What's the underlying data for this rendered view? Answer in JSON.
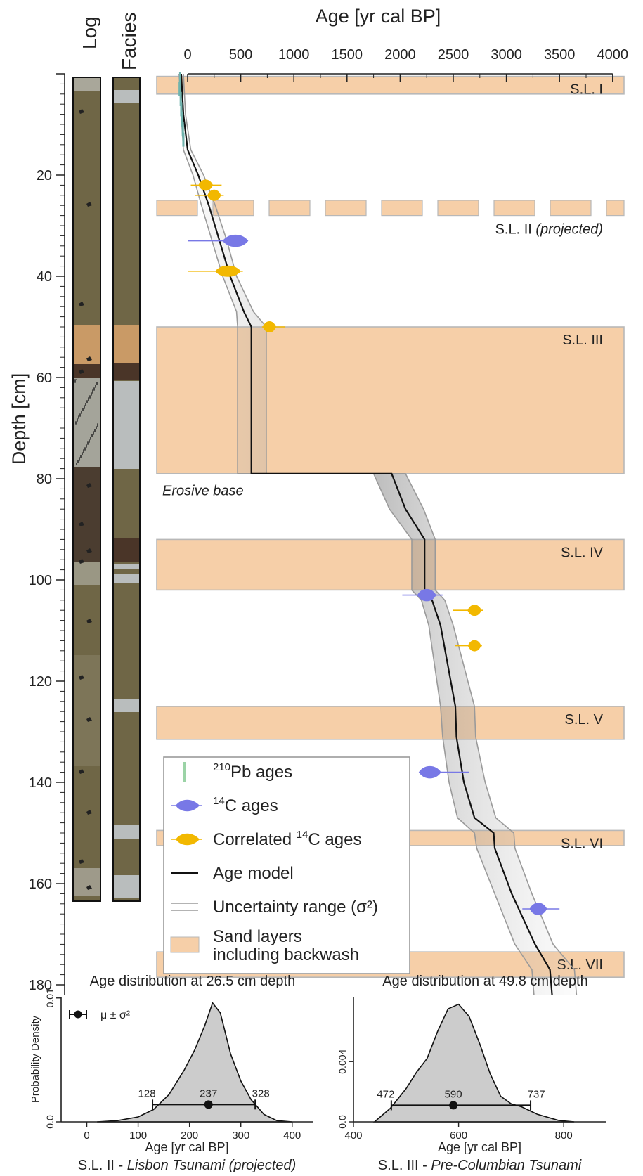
{
  "colors": {
    "sand": "#f6cfa8",
    "sand_stroke": "#b8b8b8",
    "pb": "#6fb3ad",
    "c14": "#7878e6",
    "c14_corr": "#f2b800",
    "model": "#111111",
    "uncert": "#9a9a9a",
    "log_olive": "#6f6646",
    "log_brown": "#4a3528",
    "log_tan": "#c99a66",
    "facies_light": "#b9bdbd",
    "density_fill": "#cccccc"
  },
  "column_titles": {
    "log": "Log",
    "facies": "Facies"
  },
  "chart_data": [
    {
      "type": "line",
      "title": "",
      "xlabel": "Age [yr cal BP]",
      "ylabel": "Depth [cm]",
      "xlim": [
        -100,
        4000
      ],
      "ylim": [
        180,
        0
      ],
      "x_ticks": [
        0,
        500,
        1000,
        1500,
        2000,
        2500,
        3000,
        3500,
        4000
      ],
      "y_ticks": [
        20,
        40,
        60,
        80,
        100,
        120,
        140,
        160,
        180
      ],
      "age_model": [
        [
          -60,
          0
        ],
        [
          -40,
          8
        ],
        [
          0,
          15
        ],
        [
          100,
          20
        ],
        [
          200,
          26
        ],
        [
          300,
          33
        ],
        [
          400,
          40
        ],
        [
          530,
          47
        ],
        [
          600,
          50
        ],
        [
          600,
          79
        ],
        [
          1920,
          79
        ],
        [
          2050,
          86
        ],
        [
          2230,
          92
        ],
        [
          2230,
          102
        ],
        [
          2300,
          104
        ],
        [
          2380,
          109
        ],
        [
          2520,
          125
        ],
        [
          2530,
          131
        ],
        [
          2600,
          140
        ],
        [
          2700,
          147
        ],
        [
          2880,
          150
        ],
        [
          2890,
          153
        ],
        [
          3050,
          162
        ],
        [
          3270,
          172
        ],
        [
          3410,
          177
        ],
        [
          3430,
          182
        ]
      ],
      "uncertainty_low": [
        [
          -80,
          0
        ],
        [
          -60,
          8
        ],
        [
          -40,
          15
        ],
        [
          50,
          20
        ],
        [
          130,
          26
        ],
        [
          230,
          33
        ],
        [
          330,
          40
        ],
        [
          460,
          47
        ],
        [
          470,
          50
        ],
        [
          470,
          79
        ],
        [
          1750,
          79
        ],
        [
          1900,
          86
        ],
        [
          2110,
          92
        ],
        [
          2110,
          102
        ],
        [
          2200,
          104
        ],
        [
          2270,
          109
        ],
        [
          2380,
          125
        ],
        [
          2400,
          131
        ],
        [
          2460,
          140
        ],
        [
          2540,
          147
        ],
        [
          2700,
          150
        ],
        [
          2720,
          153
        ],
        [
          2890,
          162
        ],
        [
          3080,
          172
        ],
        [
          3240,
          177
        ],
        [
          3260,
          182
        ]
      ],
      "uncertainty_high": [
        [
          -40,
          0
        ],
        [
          -20,
          8
        ],
        [
          30,
          15
        ],
        [
          150,
          20
        ],
        [
          260,
          26
        ],
        [
          370,
          33
        ],
        [
          460,
          40
        ],
        [
          620,
          47
        ],
        [
          740,
          50
        ],
        [
          740,
          79
        ],
        [
          2050,
          79
        ],
        [
          2220,
          86
        ],
        [
          2330,
          92
        ],
        [
          2330,
          102
        ],
        [
          2420,
          104
        ],
        [
          2500,
          109
        ],
        [
          2700,
          125
        ],
        [
          2710,
          131
        ],
        [
          2800,
          140
        ],
        [
          2900,
          147
        ],
        [
          3070,
          150
        ],
        [
          3080,
          153
        ],
        [
          3240,
          162
        ],
        [
          3440,
          172
        ],
        [
          3640,
          177
        ],
        [
          3660,
          182
        ]
      ],
      "sand_layers": [
        {
          "label": "S.L. I",
          "top": 0.5,
          "bottom": 4,
          "dashed": false
        },
        {
          "label": "S.L. II",
          "label_suffix": "(projected)",
          "top": 25,
          "bottom": 28,
          "dashed": true
        },
        {
          "label": "S.L. III",
          "top": 50,
          "bottom": 79,
          "dashed": false
        },
        {
          "label": "S.L. IV",
          "top": 92,
          "bottom": 102,
          "dashed": false
        },
        {
          "label": "S.L. V",
          "top": 125,
          "bottom": 131.5,
          "dashed": false
        },
        {
          "label": "S.L. VI",
          "top": 149.5,
          "bottom": 152.5,
          "dashed": false
        },
        {
          "label": "S.L. VII",
          "top": 173.5,
          "bottom": 178.5,
          "dashed": false
        }
      ],
      "annotation": {
        "text": "Erosive base",
        "x": -250,
        "y": 82
      },
      "pb210_ages": [
        [
          -70,
          1
        ],
        [
          -75,
          3
        ],
        [
          -65,
          5
        ],
        [
          -60,
          7
        ],
        [
          -50,
          9
        ],
        [
          -45,
          11
        ],
        [
          -40,
          13
        ]
      ],
      "c14_ages": [
        {
          "age": 450,
          "depth": 33,
          "min": 0,
          "max": 520
        },
        {
          "age": 2250,
          "depth": 103,
          "min": 2020,
          "max": 2400
        },
        {
          "age": 2280,
          "depth": 138,
          "min": 2200,
          "max": 2650
        },
        {
          "age": 3300,
          "depth": 165,
          "min": 3150,
          "max": 3500
        }
      ],
      "c14_corr_ages": [
        {
          "age": 170,
          "depth": 22,
          "min": 30,
          "max": 320
        },
        {
          "age": 250,
          "depth": 24,
          "min": 70,
          "max": 340
        },
        {
          "age": 380,
          "depth": 39,
          "min": 0,
          "max": 520
        },
        {
          "age": 770,
          "depth": 50,
          "min": 700,
          "max": 920
        },
        {
          "age": 2700,
          "depth": 106,
          "min": 2500,
          "max": 2780
        },
        {
          "age": 2700,
          "depth": 113,
          "min": 2520,
          "max": 2770
        }
      ],
      "legend": {
        "position": "lower-left",
        "entries": [
          {
            "key": "pb",
            "sup": "210",
            "text": "Pb ages"
          },
          {
            "key": "c14",
            "sup": "14",
            "text": "C ages"
          },
          {
            "key": "corr",
            "pre": "Correlated ",
            "sup": "14",
            "text": "C ages"
          },
          {
            "key": "model",
            "text": "Age model"
          },
          {
            "key": "uncert",
            "text": "Uncertainty range (σ²)"
          },
          {
            "key": "sand",
            "text": "Sand layers",
            "text2": "including backwash"
          }
        ]
      }
    },
    {
      "type": "area",
      "title": "Age distribution at 26.5 cm depth",
      "caption_main": "S.L. II - ",
      "caption_italic": "Lisbon Tsunami (projected)",
      "xlabel": "Age [yr cal BP]",
      "ylabel": "Probability Density",
      "xlim": [
        -50,
        440
      ],
      "ylim": [
        0,
        0.0101
      ],
      "x_ticks": [
        0,
        100,
        200,
        300,
        400
      ],
      "y_ticks": [
        0.0,
        0.01
      ],
      "y_tick_labels": [
        "0.0",
        "0.01"
      ],
      "legend_text": "μ ± σ²",
      "mean": 237,
      "mean_label": "237",
      "lower": 128,
      "lower_label": "128",
      "upper": 328,
      "upper_label": "328",
      "marker_y": 0.0014,
      "density": [
        [
          20,
          0
        ],
        [
          60,
          0.0001
        ],
        [
          100,
          0.0004
        ],
        [
          130,
          0.001
        ],
        [
          160,
          0.0022
        ],
        [
          190,
          0.0042
        ],
        [
          210,
          0.0058
        ],
        [
          230,
          0.0078
        ],
        [
          245,
          0.0096
        ],
        [
          260,
          0.0088
        ],
        [
          280,
          0.0055
        ],
        [
          300,
          0.0033
        ],
        [
          320,
          0.0018
        ],
        [
          345,
          0.0006
        ],
        [
          370,
          0.0001
        ],
        [
          400,
          0
        ]
      ]
    },
    {
      "type": "area",
      "title": "Age distribution at 49.8 cm depth",
      "caption_main": "S.L. III - ",
      "caption_italic": "Pre-Columbian Tsunami",
      "xlabel": "Age [yr cal BP]",
      "ylabel": "",
      "xlim": [
        400,
        880
      ],
      "ylim": [
        0,
        0.0083
      ],
      "x_ticks": [
        400,
        600,
        800
      ],
      "y_ticks": [
        0.0,
        0.004
      ],
      "y_tick_labels": [
        "0.0",
        "0.004"
      ],
      "mean": 590,
      "mean_label": "590",
      "lower": 472,
      "lower_label": "472",
      "upper": 737,
      "upper_label": "737",
      "marker_y": 0.0011,
      "density": [
        [
          440,
          0
        ],
        [
          470,
          0.0009
        ],
        [
          500,
          0.0022
        ],
        [
          520,
          0.0033
        ],
        [
          540,
          0.0042
        ],
        [
          560,
          0.006
        ],
        [
          580,
          0.0075
        ],
        [
          600,
          0.0078
        ],
        [
          620,
          0.007
        ],
        [
          640,
          0.0052
        ],
        [
          660,
          0.0032
        ],
        [
          680,
          0.0017
        ],
        [
          700,
          0.0012
        ],
        [
          720,
          0.001
        ],
        [
          750,
          0.0005
        ],
        [
          790,
          0.0001
        ],
        [
          820,
          0
        ]
      ]
    }
  ]
}
